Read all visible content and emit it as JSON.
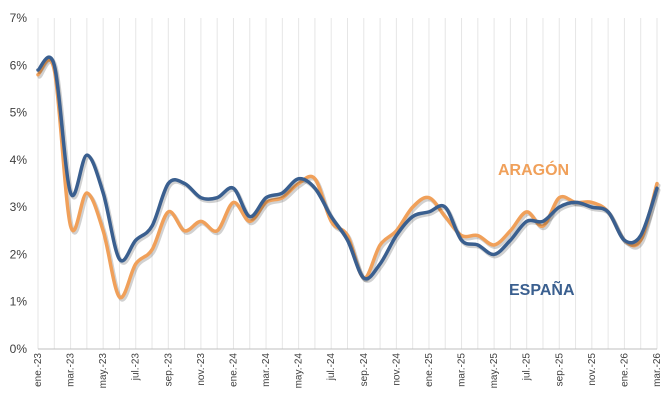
{
  "chart_data": {
    "type": "line",
    "x": [
      "ene.-23",
      "feb.-23",
      "mar.-23",
      "abr.-23",
      "may.-23",
      "jun.-23",
      "jul.-23",
      "ago.-23",
      "sep.-23",
      "oct.-23",
      "nov.-23",
      "dic.-23",
      "ene.-24",
      "feb.-24",
      "mar.-24",
      "abr.-24",
      "may.-24",
      "jun.-24",
      "jul.-24",
      "ago.-24",
      "sep.-24",
      "oct.-24",
      "nov.-24",
      "dic.-24",
      "ene.-25",
      "feb.-25",
      "mar.-25",
      "abr.-25",
      "may.-25",
      "jun.-25",
      "jul.-25",
      "ago.-25",
      "sep.-25",
      "oct.-25",
      "nov.-25",
      "dic.-25",
      "ene.-26",
      "feb.-26",
      "mar.-26"
    ],
    "tick_labels": [
      "ene.-23",
      "mar.-23",
      "may.-23",
      "jul.-23",
      "sep.-23",
      "nov.-23",
      "ene.-24",
      "mar.-24",
      "may.-24",
      "jul.-24",
      "sep.-24",
      "nov.-24",
      "ene.-25",
      "mar.-25",
      "may.-25",
      "jul.-25",
      "sep.-25",
      "nov.-25",
      "ene.-26",
      "mar.-26"
    ],
    "y_ticks": [
      "0%",
      "1%",
      "2%",
      "3%",
      "4%",
      "5%",
      "6%",
      "7%"
    ],
    "ylim": [
      0,
      7
    ],
    "grid": "vertical",
    "series": [
      {
        "name": "ARAGÓN",
        "color": "#F0A05A",
        "values": [
          5.8,
          5.9,
          2.6,
          3.3,
          2.5,
          1.1,
          1.8,
          2.1,
          2.9,
          2.5,
          2.7,
          2.5,
          3.1,
          2.7,
          3.1,
          3.2,
          3.5,
          3.6,
          2.7,
          2.4,
          1.5,
          2.2,
          2.5,
          3.0,
          3.2,
          2.8,
          2.4,
          2.4,
          2.2,
          2.5,
          2.9,
          2.6,
          3.2,
          3.1,
          3.1,
          2.9,
          2.3,
          2.3,
          3.5
        ]
      },
      {
        "name": "ESPAÑA",
        "color": "#3A5F8F",
        "values": [
          5.9,
          6.0,
          3.3,
          4.1,
          3.3,
          1.9,
          2.3,
          2.6,
          3.5,
          3.5,
          3.2,
          3.2,
          3.4,
          2.8,
          3.2,
          3.3,
          3.6,
          3.4,
          2.8,
          2.3,
          1.5,
          1.8,
          2.4,
          2.8,
          2.9,
          3.0,
          2.3,
          2.2,
          2.0,
          2.3,
          2.7,
          2.7,
          3.0,
          3.1,
          3.0,
          2.9,
          2.3,
          2.4,
          3.4
        ]
      }
    ]
  }
}
